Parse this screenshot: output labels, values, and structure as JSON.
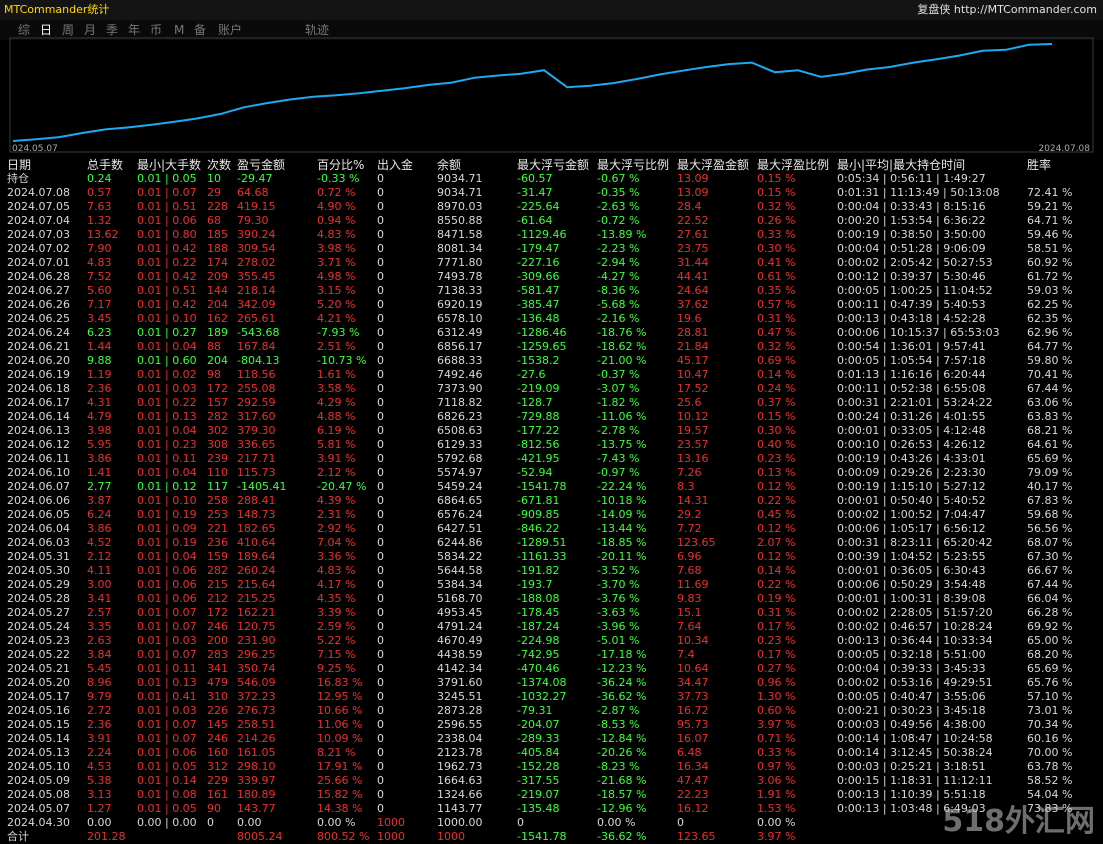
{
  "header": {
    "title": "MTCommander统计",
    "site": "复盘侠 http://MTCommander.com"
  },
  "tabs": [
    "综",
    "日",
    "周",
    "月",
    "季",
    "年",
    "币",
    "M",
    "备",
    "账户",
    "轨迹"
  ],
  "chart": {
    "x_start_label": "024.05.07",
    "x_end_label": "2024.07.08"
  },
  "table": {
    "columns": [
      "日期",
      "总手数",
      "最小|大手数",
      "次数",
      "盈亏金额",
      "百分比%",
      "出入金",
      "余额",
      "最大浮亏金额",
      "最大浮亏比例",
      "最大浮盈金额",
      "最大浮盈比例",
      "最小|平均|最大持仓时间",
      "胜率"
    ],
    "rows": [
      [
        "持仓",
        "0.24",
        "0.01 | 0.05",
        "10",
        "-29.47",
        "-0.33 %",
        "0",
        "9034.71",
        "-60.57",
        "-0.67 %",
        "13.09",
        "0.15 %",
        "0:05:34 | 0:56:11 | 1:49:27"
      ],
      [
        "2024.07.08",
        "0.57",
        "0.01 | 0.07",
        "29",
        "64.68",
        "0.72 %",
        "0",
        "9034.71",
        "-31.47",
        "-0.35 %",
        "13.09",
        "0.15 %",
        "0:01:31 | 11:13:49 | 50:13:08",
        "72.41 %"
      ],
      [
        "2024.07.05",
        "7.63",
        "0.01 | 0.51",
        "228",
        "419.15",
        "4.90 %",
        "0",
        "8970.03",
        "-225.64",
        "-2.63 %",
        "28.4",
        "0.32 %",
        "0:00:04 | 0:33:43 | 8:15:16",
        "59.21 %"
      ],
      [
        "2024.07.04",
        "1.32",
        "0.01 | 0.06",
        "68",
        "79.30",
        "0.94 %",
        "0",
        "8550.88",
        "-61.64",
        "-0.72 %",
        "22.52",
        "0.26 %",
        "0:00:20 | 1:53:54 | 6:36:22",
        "64.71 %"
      ],
      [
        "2024.07.03",
        "13.62",
        "0.01 | 0.80",
        "185",
        "390.24",
        "4.83 %",
        "0",
        "8471.58",
        "-1129.46",
        "-13.89 %",
        "27.61",
        "0.33 %",
        "0:00:19 | 0:38:50 | 3:50:00",
        "59.46 %"
      ],
      [
        "2024.07.02",
        "7.90",
        "0.01 | 0.42",
        "188",
        "309.54",
        "3.98 %",
        "0",
        "8081.34",
        "-179.47",
        "-2.23 %",
        "23.75",
        "0.30 %",
        "0:00:04 | 0:51:28 | 9:06:09",
        "58.51 %"
      ],
      [
        "2024.07.01",
        "4.83",
        "0.01 | 0.22",
        "174",
        "278.02",
        "3.71 %",
        "0",
        "7771.80",
        "-227.16",
        "-2.94 %",
        "31.44",
        "0.41 %",
        "0:00:02 | 2:05:42 | 50:27:53",
        "60.92 %"
      ],
      [
        "2024.06.28",
        "7.52",
        "0.01 | 0.42",
        "209",
        "355.45",
        "4.98 %",
        "0",
        "7493.78",
        "-309.66",
        "-4.27 %",
        "44.41",
        "0.61 %",
        "0:00:12 | 0:39:37 | 5:30:46",
        "61.72 %"
      ],
      [
        "2024.06.27",
        "5.60",
        "0.01 | 0.51",
        "144",
        "218.14",
        "3.15 %",
        "0",
        "7138.33",
        "-581.47",
        "-8.36 %",
        "24.64",
        "0.35 %",
        "0:00:05 | 1:00:25 | 11:04:52",
        "59.03 %"
      ],
      [
        "2024.06.26",
        "7.17",
        "0.01 | 0.42",
        "204",
        "342.09",
        "5.20 %",
        "0",
        "6920.19",
        "-385.47",
        "-5.68 %",
        "37.62",
        "0.57 %",
        "0:00:11 | 0:47:39 | 5:40:53",
        "62.25 %"
      ],
      [
        "2024.06.25",
        "3.45",
        "0.01 | 0.10",
        "162",
        "265.61",
        "4.21 %",
        "0",
        "6578.10",
        "-136.48",
        "-2.16 %",
        "19.6",
        "0.31 %",
        "0:00:13 | 0:43:18 | 4:52:28",
        "62.35 %"
      ],
      [
        "2024.06.24",
        "6.23",
        "0.01 | 0.27",
        "189",
        "-543.68",
        "-7.93 %",
        "0",
        "6312.49",
        "-1286.46",
        "-18.76 %",
        "28.81",
        "0.47 %",
        "0:00:06 | 10:15:37 | 65:53:03",
        "62.96 %"
      ],
      [
        "2024.06.21",
        "1.44",
        "0.01 | 0.04",
        "88",
        "167.84",
        "2.51 %",
        "0",
        "6856.17",
        "-1259.65",
        "-18.62 %",
        "21.84",
        "0.32 %",
        "0:00:54 | 1:36:01 | 9:57:41",
        "64.77 %"
      ],
      [
        "2024.06.20",
        "9.88",
        "0.01 | 0.60",
        "204",
        "-804.13",
        "-10.73 %",
        "0",
        "6688.33",
        "-1538.2",
        "-21.00 %",
        "45.17",
        "0.69 %",
        "0:00:05 | 1:05:54 | 7:57:18",
        "59.80 %"
      ],
      [
        "2024.06.19",
        "1.19",
        "0.01 | 0.02",
        "98",
        "118.56",
        "1.61 %",
        "0",
        "7492.46",
        "-27.6",
        "-0.37 %",
        "10.47",
        "0.14 %",
        "0:01:13 | 1:16:16 | 6:20:44",
        "70.41 %"
      ],
      [
        "2024.06.18",
        "2.36",
        "0.01 | 0.03",
        "172",
        "255.08",
        "3.58 %",
        "0",
        "7373.90",
        "-219.09",
        "-3.07 %",
        "17.52",
        "0.24 %",
        "0:00:11 | 0:52:38 | 6:55:08",
        "67.44 %"
      ],
      [
        "2024.06.17",
        "4.31",
        "0.01 | 0.22",
        "157",
        "292.59",
        "4.29 %",
        "0",
        "7118.82",
        "-128.7",
        "-1.82 %",
        "25.6",
        "0.37 %",
        "0:00:31 | 2:21:01 | 53:24:22",
        "63.06 %"
      ],
      [
        "2024.06.14",
        "4.79",
        "0.01 | 0.13",
        "282",
        "317.60",
        "4.88 %",
        "0",
        "6826.23",
        "-729.88",
        "-11.06 %",
        "10.12",
        "0.15 %",
        "0:00:24 | 0:31:26 | 4:01:55",
        "63.83 %"
      ],
      [
        "2024.06.13",
        "3.98",
        "0.01 | 0.04",
        "302",
        "379.30",
        "6.19 %",
        "0",
        "6508.63",
        "-177.22",
        "-2.78 %",
        "19.57",
        "0.30 %",
        "0:00:01 | 0:33:05 | 4:12:48",
        "68.21 %"
      ],
      [
        "2024.06.12",
        "5.95",
        "0.01 | 0.23",
        "308",
        "336.65",
        "5.81 %",
        "0",
        "6129.33",
        "-812.56",
        "-13.75 %",
        "23.57",
        "0.40 %",
        "0:00:10 | 0:26:53 | 4:26:12",
        "64.61 %"
      ],
      [
        "2024.06.11",
        "3.86",
        "0.01 | 0.11",
        "239",
        "217.71",
        "3.91 %",
        "0",
        "5792.68",
        "-421.95",
        "-7.43 %",
        "13.16",
        "0.23 %",
        "0:00:19 | 0:43:26 | 4:33:01",
        "65.69 %"
      ],
      [
        "2024.06.10",
        "1.41",
        "0.01 | 0.04",
        "110",
        "115.73",
        "2.12 %",
        "0",
        "5574.97",
        "-52.94",
        "-0.97 %",
        "7.26",
        "0.13 %",
        "0:00:09 | 0:29:26 | 2:23:30",
        "79.09 %"
      ],
      [
        "2024.06.07",
        "2.77",
        "0.01 | 0.12",
        "117",
        "-1405.41",
        "-20.47 %",
        "0",
        "5459.24",
        "-1541.78",
        "-22.24 %",
        "8.3",
        "0.12 %",
        "0:00:19 | 1:15:10 | 5:27:12",
        "40.17 %"
      ],
      [
        "2024.06.06",
        "3.87",
        "0.01 | 0.10",
        "258",
        "288.41",
        "4.39 %",
        "0",
        "6864.65",
        "-671.81",
        "-10.18 %",
        "14.31",
        "0.22 %",
        "0:00:01 | 0:50:40 | 5:40:52",
        "67.83 %"
      ],
      [
        "2024.06.05",
        "6.24",
        "0.01 | 0.19",
        "253",
        "148.73",
        "2.31 %",
        "0",
        "6576.24",
        "-909.85",
        "-14.09 %",
        "29.2",
        "0.45 %",
        "0:00:02 | 1:00:52 | 7:04:47",
        "59.68 %"
      ],
      [
        "2024.06.04",
        "3.86",
        "0.01 | 0.09",
        "221",
        "182.65",
        "2.92 %",
        "0",
        "6427.51",
        "-846.22",
        "-13.44 %",
        "7.72",
        "0.12 %",
        "0:00:06 | 1:05:17 | 6:56:12",
        "56.56 %"
      ],
      [
        "2024.06.03",
        "4.52",
        "0.01 | 0.19",
        "236",
        "410.64",
        "7.04 %",
        "0",
        "6244.86",
        "-1289.51",
        "-18.85 %",
        "123.65",
        "2.07 %",
        "0:00:31 | 8:23:11 | 65:20:42",
        "68.07 %"
      ],
      [
        "2024.05.31",
        "2.12",
        "0.01 | 0.04",
        "159",
        "189.64",
        "3.36 %",
        "0",
        "5834.22",
        "-1161.33",
        "-20.11 %",
        "6.96",
        "0.12 %",
        "0:00:39 | 1:04:52 | 5:23:55",
        "67.30 %"
      ],
      [
        "2024.05.30",
        "4.11",
        "0.01 | 0.06",
        "282",
        "260.24",
        "4.83 %",
        "0",
        "5644.58",
        "-191.82",
        "-3.52 %",
        "7.68",
        "0.14 %",
        "0:00:01 | 0:36:05 | 6:30:43",
        "66.67 %"
      ],
      [
        "2024.05.29",
        "3.00",
        "0.01 | 0.06",
        "215",
        "215.64",
        "4.17 %",
        "0",
        "5384.34",
        "-193.7",
        "-3.70 %",
        "11.69",
        "0.22 %",
        "0:00:06 | 0:50:29 | 3:54:48",
        "67.44 %"
      ],
      [
        "2024.05.28",
        "3.41",
        "0.01 | 0.06",
        "212",
        "215.25",
        "4.35 %",
        "0",
        "5168.70",
        "-188.08",
        "-3.76 %",
        "9.83",
        "0.19 %",
        "0:00:01 | 1:00:31 | 8:39:08",
        "66.04 %"
      ],
      [
        "2024.05.27",
        "2.57",
        "0.01 | 0.07",
        "172",
        "162.21",
        "3.39 %",
        "0",
        "4953.45",
        "-178.45",
        "-3.63 %",
        "15.1",
        "0.31 %",
        "0:00:02 | 2:28:05 | 51:57:20",
        "66.28 %"
      ],
      [
        "2024.05.24",
        "3.35",
        "0.01 | 0.07",
        "246",
        "120.75",
        "2.59 %",
        "0",
        "4791.24",
        "-187.24",
        "-3.96 %",
        "7.64",
        "0.17 %",
        "0:00:02 | 0:46:57 | 10:28:24",
        "69.92 %"
      ],
      [
        "2024.05.23",
        "2.63",
        "0.01 | 0.03",
        "200",
        "231.90",
        "5.22 %",
        "0",
        "4670.49",
        "-224.98",
        "-5.01 %",
        "10.34",
        "0.23 %",
        "0:00:13 | 0:36:44 | 10:33:34",
        "65.00 %"
      ],
      [
        "2024.05.22",
        "3.84",
        "0.01 | 0.07",
        "283",
        "296.25",
        "7.15 %",
        "0",
        "4438.59",
        "-742.95",
        "-17.18 %",
        "7.4",
        "0.17 %",
        "0:00:05 | 0:32:18 | 5:51:00",
        "68.20 %"
      ],
      [
        "2024.05.21",
        "5.45",
        "0.01 | 0.11",
        "341",
        "350.74",
        "9.25 %",
        "0",
        "4142.34",
        "-470.46",
        "-12.23 %",
        "10.64",
        "0.27 %",
        "0:00:04 | 0:39:33 | 3:45:33",
        "65.69 %"
      ],
      [
        "2024.05.20",
        "8.96",
        "0.01 | 0.13",
        "479",
        "546.09",
        "16.83 %",
        "0",
        "3791.60",
        "-1374.08",
        "-36.24 %",
        "34.47",
        "0.96 %",
        "0:00:02 | 0:53:16 | 49:29:51",
        "65.76 %"
      ],
      [
        "2024.05.17",
        "9.79",
        "0.01 | 0.41",
        "310",
        "372.23",
        "12.95 %",
        "0",
        "3245.51",
        "-1032.27",
        "-36.62 %",
        "37.73",
        "1.30 %",
        "0:00:05 | 0:40:47 | 3:55:06",
        "57.10 %"
      ],
      [
        "2024.05.16",
        "2.72",
        "0.01 | 0.03",
        "226",
        "276.73",
        "10.66 %",
        "0",
        "2873.28",
        "-79.31",
        "-2.87 %",
        "16.72",
        "0.60 %",
        "0:00:21 | 0:30:23 | 3:45:18",
        "73.01 %"
      ],
      [
        "2024.05.15",
        "2.36",
        "0.01 | 0.07",
        "145",
        "258.51",
        "11.06 %",
        "0",
        "2596.55",
        "-204.07",
        "-8.53 %",
        "95.73",
        "3.97 %",
        "0:00:03 | 0:49:56 | 4:38:00",
        "70.34 %"
      ],
      [
        "2024.05.14",
        "3.91",
        "0.01 | 0.07",
        "246",
        "214.26",
        "10.09 %",
        "0",
        "2338.04",
        "-289.33",
        "-12.84 %",
        "16.07",
        "0.71 %",
        "0:00:14 | 1:08:47 | 10:24:58",
        "60.16 %"
      ],
      [
        "2024.05.13",
        "2.24",
        "0.01 | 0.06",
        "160",
        "161.05",
        "8.21 %",
        "0",
        "2123.78",
        "-405.84",
        "-20.26 %",
        "6.48",
        "0.33 %",
        "0:00:14 | 3:12:45 | 50:38:24",
        "70.00 %"
      ],
      [
        "2024.05.10",
        "4.53",
        "0.01 | 0.05",
        "312",
        "298.10",
        "17.91 %",
        "0",
        "1962.73",
        "-152.28",
        "-8.23 %",
        "16.34",
        "0.97 %",
        "0:00:03 | 0:25:21 | 3:18:51",
        "63.78 %"
      ],
      [
        "2024.05.09",
        "5.38",
        "0.01 | 0.14",
        "229",
        "339.97",
        "25.66 %",
        "0",
        "1664.63",
        "-317.55",
        "-21.68 %",
        "47.47",
        "3.06 %",
        "0:00:15 | 1:18:31 | 11:12:11",
        "58.52 %"
      ],
      [
        "2024.05.08",
        "3.13",
        "0.01 | 0.08",
        "161",
        "180.89",
        "15.82 %",
        "0",
        "1324.66",
        "-219.07",
        "-18.57 %",
        "22.23",
        "1.91 %",
        "0:00:13 | 1:10:39 | 5:51:18",
        "54.04 %"
      ],
      [
        "2024.05.07",
        "1.27",
        "0.01 | 0.05",
        "90",
        "143.77",
        "14.38 %",
        "0",
        "1143.77",
        "-135.48",
        "-12.96 %",
        "16.12",
        "1.53 %",
        "0:00:13 | 1:03:48 | 6:49:03",
        "73.83 %"
      ],
      [
        "2024.04.30",
        "0.00",
        "0.00 | 0.00",
        "0",
        "0.00",
        "0.00 %",
        "1000",
        "1000.00",
        "0",
        "0.00 %",
        "0",
        "0.00 %"
      ],
      [
        "合计",
        "201.28",
        null,
        null,
        "8005.24",
        "800.52 %",
        "1000",
        "1000",
        "-1541.78",
        "-36.62 %",
        "123.65",
        "3.97 %"
      ]
    ]
  },
  "watermark": "518外汇网"
}
